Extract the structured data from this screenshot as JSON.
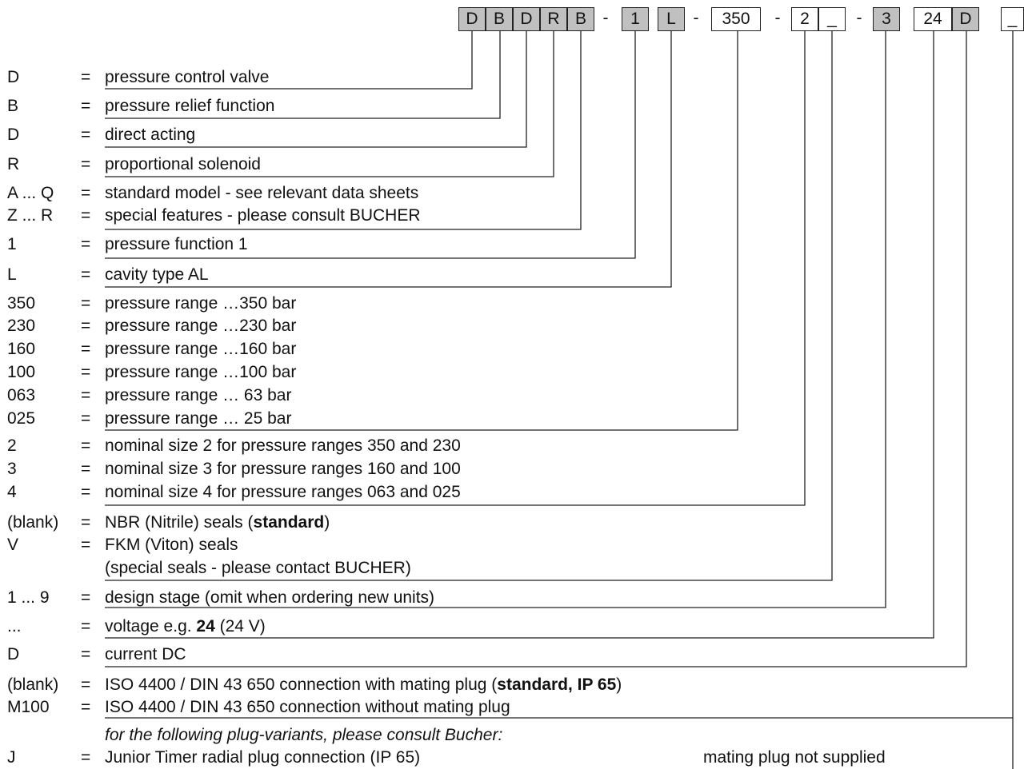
{
  "ordering_code": {
    "boxes": [
      {
        "text": "D",
        "shaded": true
      },
      {
        "text": "B",
        "shaded": true
      },
      {
        "text": "D",
        "shaded": true
      },
      {
        "text": "R",
        "shaded": true
      },
      {
        "text": "B",
        "shaded": true
      },
      {
        "text": "1",
        "shaded": true
      },
      {
        "text": "L",
        "shaded": true
      },
      {
        "text": "350",
        "shaded": false
      },
      {
        "text": "2",
        "shaded": false
      },
      {
        "text": "_",
        "shaded": false
      },
      {
        "text": "3",
        "shaded": true
      },
      {
        "text": "24",
        "shaded": false
      },
      {
        "text": "D",
        "shaded": true
      },
      {
        "text": "_",
        "shaded": false
      }
    ],
    "separators": [
      "-",
      "-",
      "-",
      "-",
      "-"
    ]
  },
  "rows": [
    {
      "code": "D",
      "eq": "=",
      "desc": [
        {
          "t": "pressure control valve"
        }
      ]
    },
    {
      "code": "B",
      "eq": "=",
      "desc": [
        {
          "t": "pressure relief function"
        }
      ]
    },
    {
      "code": "D",
      "eq": "=",
      "desc": [
        {
          "t": "direct acting"
        }
      ]
    },
    {
      "code": "R",
      "eq": "=",
      "desc": [
        {
          "t": "proportional solenoid"
        }
      ]
    },
    {
      "code": "A ... Q",
      "eq": "=",
      "desc": [
        {
          "t": "standard model - see relevant data sheets"
        }
      ]
    },
    {
      "code": "Z ... R",
      "eq": "=",
      "desc": [
        {
          "t": "special features - please consult BUCHER"
        }
      ]
    },
    {
      "code": "1",
      "eq": "=",
      "desc": [
        {
          "t": "pressure function 1"
        }
      ]
    },
    {
      "code": "L",
      "eq": "=",
      "desc": [
        {
          "t": "cavity type AL"
        }
      ]
    },
    {
      "code": "350",
      "eq": "=",
      "desc": [
        {
          "t": "pressure range …350 bar"
        }
      ]
    },
    {
      "code": "230",
      "eq": "=",
      "desc": [
        {
          "t": "pressure range …230 bar"
        }
      ]
    },
    {
      "code": "160",
      "eq": "=",
      "desc": [
        {
          "t": "pressure range …160 bar"
        }
      ]
    },
    {
      "code": "100",
      "eq": "=",
      "desc": [
        {
          "t": "pressure range …100 bar"
        }
      ]
    },
    {
      "code": "063",
      "eq": "=",
      "desc": [
        {
          "t": "pressure range …  63 bar"
        }
      ]
    },
    {
      "code": "025",
      "eq": "=",
      "desc": [
        {
          "t": "pressure range …  25 bar"
        }
      ]
    },
    {
      "code": "2",
      "eq": "=",
      "desc": [
        {
          "t": "nominal size 2 for pressure ranges 350 and 230"
        }
      ]
    },
    {
      "code": "3",
      "eq": "=",
      "desc": [
        {
          "t": "nominal size 3 for pressure ranges 160 and 100"
        }
      ]
    },
    {
      "code": "4",
      "eq": "=",
      "desc": [
        {
          "t": "nominal size 4 for pressure ranges 063 and 025"
        }
      ]
    },
    {
      "code": "(blank)",
      "eq": "=",
      "desc": [
        {
          "t": "NBR (Nitrile) seals  ("
        },
        {
          "t": "standard",
          "b": true
        },
        {
          "t": ")"
        }
      ]
    },
    {
      "code": "V",
      "eq": "=",
      "desc": [
        {
          "t": "FKM (Viton) seals"
        }
      ]
    },
    {
      "code": "",
      "eq": "",
      "desc": [
        {
          "t": "(special seals - please contact BUCHER)"
        }
      ]
    },
    {
      "code": "1 ... 9",
      "eq": "=",
      "desc": [
        {
          "t": "design stage (omit when ordering new units)"
        }
      ]
    },
    {
      "code": "...",
      "eq": "=",
      "desc": [
        {
          "t": "voltage e.g. "
        },
        {
          "t": "24",
          "b": true
        },
        {
          "t": " (24 V)"
        }
      ]
    },
    {
      "code": "D",
      "eq": "=",
      "desc": [
        {
          "t": "current  DC"
        }
      ]
    },
    {
      "code": "(blank)",
      "eq": "=",
      "desc": [
        {
          "t": "ISO 4400 / DIN 43 650 connection with mating plug ("
        },
        {
          "t": "standard, IP 65",
          "b": true
        },
        {
          "t": ")"
        }
      ]
    },
    {
      "code": "M100",
      "eq": "=",
      "desc": [
        {
          "t": "ISO 4400 / DIN 43 650 connection without mating plug"
        }
      ]
    },
    {
      "code": "J",
      "eq": "=",
      "desc": [
        {
          "t": "Junior Timer radial plug connection (IP 65)"
        }
      ]
    }
  ],
  "note": "for the following plug-variants, please consult Bucher:",
  "extra": "mating plug not supplied",
  "colors": {
    "shaded": "#c0c0c0",
    "plain": "#ffffff",
    "line": "#222222",
    "text": "#111111"
  }
}
